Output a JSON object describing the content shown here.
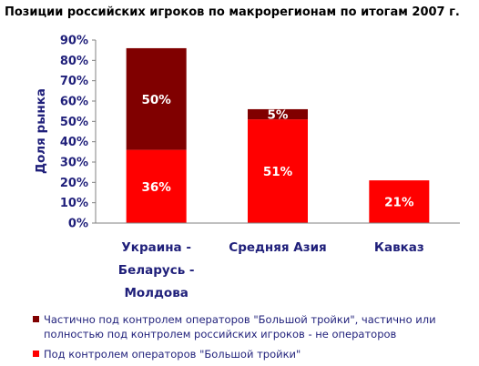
{
  "chart_data": {
    "type": "bar",
    "stacked": true,
    "title": "Позиции российских игроков по макрорегионам по итогам 2007 г.",
    "ylabel": "Доля рынка",
    "xlabel": "",
    "ylim": [
      0,
      90
    ],
    "yticks": [
      "0%",
      "10%",
      "20%",
      "30%",
      "40%",
      "50%",
      "60%",
      "70%",
      "80%",
      "90%"
    ],
    "ytick_values": [
      0,
      10,
      20,
      30,
      40,
      50,
      60,
      70,
      80,
      90
    ],
    "categories": [
      [
        "Украина -",
        "Беларусь -",
        "Молдова"
      ],
      [
        "Средняя Азия"
      ],
      [
        "Кавказ"
      ]
    ],
    "series": [
      {
        "name": "Под контролем операторов \"Большой тройки\"",
        "color": "#ff0000",
        "values": [
          36,
          51,
          21
        ],
        "labels": [
          "36%",
          "51%",
          "21%"
        ]
      },
      {
        "name_lines": [
          "Частично под контролем операторов \"Большой тройки\", частично или",
          "полностью под контролем российских игроков - не операторов"
        ],
        "color": "#800000",
        "values": [
          50,
          5,
          0
        ],
        "labels": [
          "50%",
          "5%",
          ""
        ]
      }
    ],
    "grid": false,
    "legend": "bottom"
  }
}
